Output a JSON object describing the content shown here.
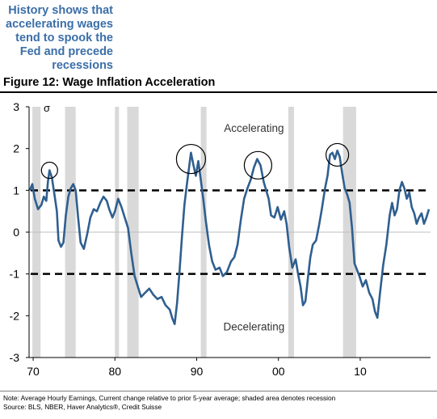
{
  "headline": "History shows that accelerating wages tend to spook the Fed and precede recessions",
  "figure_title": "Figure 12: Wage Inflation Acceleration",
  "footnote_lines": [
    "Note: Average Hourly Earnings, Current change relative to prior 5-year average; shaded area denotes recession",
    "Source: BLS, NBER, Haver Analytics®, Credit Suisse"
  ],
  "colors": {
    "line": "#2f5f8f",
    "recession": "#d9d9d9",
    "headline": "#3b6ea8",
    "threshold": "#000000"
  },
  "chart_data": {
    "type": "line",
    "title": "Wage Inflation Acceleration",
    "ylabel": "σ",
    "xlim": [
      1969.5,
      2018.6
    ],
    "ylim": [
      -3,
      3
    ],
    "yticks": [
      3,
      2,
      1,
      0,
      -1,
      -2,
      -3
    ],
    "xticks": [
      {
        "value": 1970,
        "label": "70"
      },
      {
        "value": 1980,
        "label": "80"
      },
      {
        "value": 1990,
        "label": "90"
      },
      {
        "value": 2000,
        "label": "00"
      },
      {
        "value": 2010,
        "label": "10"
      }
    ],
    "thresholds": [
      1,
      -1
    ],
    "annotations": [
      {
        "text": "Accelerating",
        "x": 1997.0,
        "y": 2.4
      },
      {
        "text": "Decelerating",
        "x": 1997.0,
        "y": -2.35
      }
    ],
    "highlight_circles": [
      {
        "x": 1972.0,
        "y": 1.48
      },
      {
        "x": 1989.3,
        "y": 1.75
      },
      {
        "x": 1997.5,
        "y": 1.6
      },
      {
        "x": 2007.2,
        "y": 1.85
      }
    ],
    "recessions": [
      [
        1969.9,
        1970.9
      ],
      [
        1973.9,
        1975.2
      ],
      [
        1980.0,
        1980.5
      ],
      [
        1981.5,
        1982.9
      ],
      [
        1990.5,
        1991.2
      ],
      [
        2001.2,
        2001.9
      ],
      [
        2007.9,
        2009.5
      ]
    ],
    "series": [
      {
        "values": [
          [
            1969.6,
            1.0
          ],
          [
            1969.9,
            1.15
          ],
          [
            1970.2,
            0.8
          ],
          [
            1970.6,
            0.55
          ],
          [
            1971.0,
            0.65
          ],
          [
            1971.3,
            0.85
          ],
          [
            1971.6,
            0.75
          ],
          [
            1971.8,
            1.2
          ],
          [
            1972.0,
            1.48
          ],
          [
            1972.3,
            1.3
          ],
          [
            1972.6,
            0.9
          ],
          [
            1972.9,
            0.5
          ],
          [
            1973.1,
            -0.2
          ],
          [
            1973.4,
            -0.35
          ],
          [
            1973.7,
            -0.25
          ],
          [
            1974.0,
            0.4
          ],
          [
            1974.3,
            0.85
          ],
          [
            1974.6,
            1.05
          ],
          [
            1974.9,
            1.15
          ],
          [
            1975.2,
            1.0
          ],
          [
            1975.5,
            0.35
          ],
          [
            1975.8,
            -0.25
          ],
          [
            1976.2,
            -0.4
          ],
          [
            1976.6,
            -0.05
          ],
          [
            1977.0,
            0.35
          ],
          [
            1977.4,
            0.55
          ],
          [
            1977.8,
            0.5
          ],
          [
            1978.2,
            0.7
          ],
          [
            1978.6,
            0.85
          ],
          [
            1979.0,
            0.75
          ],
          [
            1979.3,
            0.55
          ],
          [
            1979.7,
            0.35
          ],
          [
            1980.0,
            0.5
          ],
          [
            1980.4,
            0.8
          ],
          [
            1980.8,
            0.6
          ],
          [
            1981.2,
            0.35
          ],
          [
            1981.6,
            0.1
          ],
          [
            1982.0,
            -0.5
          ],
          [
            1982.4,
            -1.05
          ],
          [
            1982.8,
            -1.3
          ],
          [
            1983.2,
            -1.55
          ],
          [
            1983.7,
            -1.45
          ],
          [
            1984.2,
            -1.35
          ],
          [
            1984.7,
            -1.5
          ],
          [
            1985.2,
            -1.6
          ],
          [
            1985.7,
            -1.55
          ],
          [
            1986.2,
            -1.75
          ],
          [
            1986.7,
            -1.85
          ],
          [
            1987.0,
            -2.05
          ],
          [
            1987.3,
            -2.2
          ],
          [
            1987.6,
            -1.7
          ],
          [
            1987.9,
            -0.95
          ],
          [
            1988.2,
            -0.1
          ],
          [
            1988.5,
            0.65
          ],
          [
            1988.8,
            1.15
          ],
          [
            1989.1,
            1.6
          ],
          [
            1989.3,
            1.9
          ],
          [
            1989.6,
            1.6
          ],
          [
            1989.9,
            1.35
          ],
          [
            1990.2,
            1.7
          ],
          [
            1990.5,
            1.25
          ],
          [
            1990.8,
            0.8
          ],
          [
            1991.1,
            0.3
          ],
          [
            1991.5,
            -0.3
          ],
          [
            1991.9,
            -0.7
          ],
          [
            1992.3,
            -0.9
          ],
          [
            1992.8,
            -0.85
          ],
          [
            1993.2,
            -1.05
          ],
          [
            1993.7,
            -0.95
          ],
          [
            1994.2,
            -0.7
          ],
          [
            1994.6,
            -0.6
          ],
          [
            1995.0,
            -0.3
          ],
          [
            1995.4,
            0.3
          ],
          [
            1995.8,
            0.8
          ],
          [
            1996.2,
            1.05
          ],
          [
            1996.6,
            1.25
          ],
          [
            1997.0,
            1.55
          ],
          [
            1997.4,
            1.75
          ],
          [
            1997.8,
            1.6
          ],
          [
            1998.2,
            1.2
          ],
          [
            1998.5,
            1.0
          ],
          [
            1998.8,
            0.8
          ],
          [
            1999.1,
            0.4
          ],
          [
            1999.5,
            0.35
          ],
          [
            1999.9,
            0.6
          ],
          [
            2000.3,
            0.3
          ],
          [
            2000.7,
            0.5
          ],
          [
            2001.0,
            0.2
          ],
          [
            2001.3,
            -0.35
          ],
          [
            2001.7,
            -0.85
          ],
          [
            2002.1,
            -0.65
          ],
          [
            2002.4,
            -1.0
          ],
          [
            2002.7,
            -1.3
          ],
          [
            2003.0,
            -1.75
          ],
          [
            2003.3,
            -1.65
          ],
          [
            2003.6,
            -1.1
          ],
          [
            2003.9,
            -0.6
          ],
          [
            2004.2,
            -0.3
          ],
          [
            2004.6,
            -0.2
          ],
          [
            2005.0,
            0.2
          ],
          [
            2005.3,
            0.55
          ],
          [
            2005.7,
            1.05
          ],
          [
            2006.0,
            1.35
          ],
          [
            2006.3,
            1.85
          ],
          [
            2006.6,
            1.9
          ],
          [
            2006.9,
            1.75
          ],
          [
            2007.2,
            1.95
          ],
          [
            2007.5,
            1.8
          ],
          [
            2007.8,
            1.4
          ],
          [
            2008.1,
            1.05
          ],
          [
            2008.4,
            0.9
          ],
          [
            2008.7,
            0.7
          ],
          [
            2009.0,
            0.1
          ],
          [
            2009.3,
            -0.75
          ],
          [
            2009.6,
            -0.9
          ],
          [
            2009.9,
            -1.05
          ],
          [
            2010.3,
            -1.3
          ],
          [
            2010.7,
            -1.15
          ],
          [
            2011.1,
            -1.45
          ],
          [
            2011.5,
            -1.6
          ],
          [
            2011.8,
            -1.9
          ],
          [
            2012.1,
            -2.05
          ],
          [
            2012.4,
            -1.5
          ],
          [
            2012.8,
            -0.8
          ],
          [
            2013.2,
            -0.3
          ],
          [
            2013.6,
            0.4
          ],
          [
            2013.9,
            0.7
          ],
          [
            2014.2,
            0.4
          ],
          [
            2014.5,
            0.55
          ],
          [
            2014.8,
            1.0
          ],
          [
            2015.1,
            1.2
          ],
          [
            2015.4,
            1.05
          ],
          [
            2015.7,
            0.8
          ],
          [
            2016.0,
            0.95
          ],
          [
            2016.3,
            0.6
          ],
          [
            2016.6,
            0.45
          ],
          [
            2016.9,
            0.2
          ],
          [
            2017.2,
            0.35
          ],
          [
            2017.5,
            0.45
          ],
          [
            2017.8,
            0.2
          ],
          [
            2018.1,
            0.35
          ],
          [
            2018.4,
            0.55
          ]
        ]
      }
    ]
  }
}
